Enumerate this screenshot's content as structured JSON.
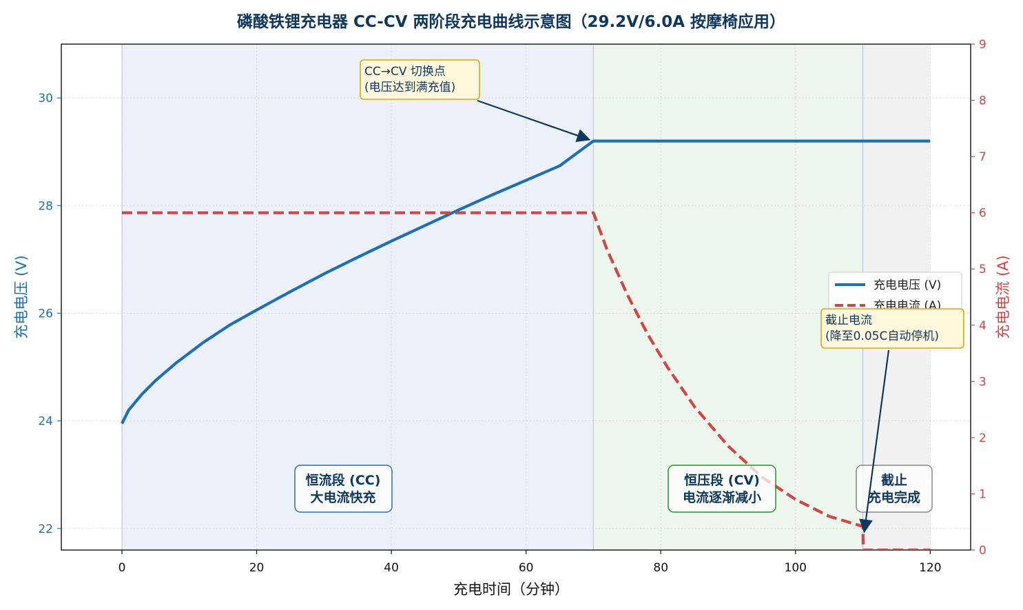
{
  "chart_data": {
    "type": "line",
    "title": "磷酸铁锂充电器 CC-CV 两阶段充电曲线示意图（29.2V/6.0A 按摩椅应用）",
    "xlabel": "充电时间（分钟）",
    "ylabel_left": "充电电压 (V)",
    "ylabel_right": "充电电流 (A)",
    "xlim": [
      -9,
      126
    ],
    "ylim_left": [
      21.6,
      31.0
    ],
    "ylim_right": [
      0,
      9
    ],
    "xticks": [
      0,
      20,
      40,
      60,
      80,
      100,
      120
    ],
    "yticks_left": [
      22,
      24,
      26,
      28,
      30
    ],
    "yticks_right": [
      0,
      1,
      2,
      3,
      4,
      5,
      6,
      7,
      8,
      9
    ],
    "grid": true,
    "legend_position": "center-right",
    "colors": {
      "voltage": "#1f6fb2",
      "current": "#d04545",
      "cc_region": "#dce6f4",
      "cv_region": "#dcefdc",
      "cutoff_region": "#e6e6e6",
      "annotation_border": "#e0a800",
      "annotation_fill": "#fff8dc"
    },
    "series": [
      {
        "name": "充电电压 (V)",
        "axis": "left",
        "style": "solid",
        "x": [
          0,
          1,
          3,
          5,
          8,
          12,
          16,
          20,
          25,
          30,
          35,
          40,
          45,
          50,
          55,
          60,
          65,
          70,
          80,
          90,
          100,
          110,
          120
        ],
        "values": [
          23.95,
          24.2,
          24.5,
          24.75,
          25.07,
          25.45,
          25.78,
          26.06,
          26.4,
          26.73,
          27.04,
          27.34,
          27.63,
          27.92,
          28.2,
          28.47,
          28.74,
          29.2,
          29.2,
          29.2,
          29.2,
          29.2,
          29.2
        ]
      },
      {
        "name": "充电电流 (A)",
        "axis": "right",
        "style": "dashed",
        "x": [
          0,
          70,
          72,
          75,
          78,
          81,
          85,
          90,
          95,
          100,
          105,
          110,
          110.05,
          120
        ],
        "values": [
          6.0,
          6.0,
          5.35,
          4.55,
          3.85,
          3.25,
          2.55,
          1.85,
          1.3,
          0.9,
          0.6,
          0.42,
          0.0,
          0.0
        ]
      }
    ],
    "regions": [
      {
        "x_start": 0,
        "x_end": 70,
        "label_line1": "恒流段 (CC)",
        "label_line2": "大电流快充"
      },
      {
        "x_start": 70,
        "x_end": 110,
        "label_line1": "恒压段 (CV)",
        "label_line2": "电流逐渐减小"
      },
      {
        "x_start": 110,
        "x_end": 120,
        "label_line1": "截止",
        "label_line2": "充电完成"
      }
    ],
    "annotations": [
      {
        "line1": "CC→CV 切换点",
        "line2": "(电压达到满充值)",
        "target_x": 70,
        "target_y": 29.2,
        "target_axis": "left"
      },
      {
        "line1": "截止电流",
        "line2": "(降至0.05C自动停机)",
        "target_x": 110,
        "target_y": 0.3,
        "target_axis": "right"
      }
    ]
  }
}
